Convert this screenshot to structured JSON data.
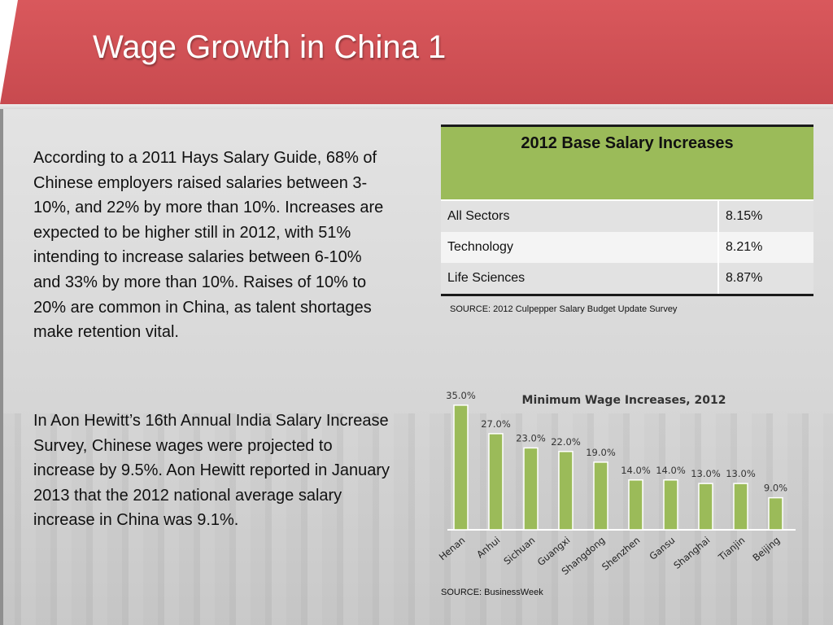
{
  "title": "Wage Growth in China 1",
  "paragraphs": [
    "According to a 2011 Hays Salary Guide, 68% of Chinese employers raised salaries between 3-10%, and 22% by more than 10%. Increases are expected to be higher still in 2012, with 51% intending to increase salaries between 6-10% and 33% by more than 10%. Raises of 10% to 20% are common in China, as talent shortages make retention vital.",
    "In Aon Hewitt’s 16th Annual India Salary Increase Survey, Chinese wages were projected to increase by 9.5%. Aon Hewitt reported in January 2013 that the 2012 national average salary increase in China was 9.1%."
  ],
  "salary_table": {
    "header": "2012 Base Salary Increases",
    "rows": [
      {
        "sector": "All Sectors",
        "value": "8.15%"
      },
      {
        "sector": "Technology",
        "value": "8.21%"
      },
      {
        "sector": "Life Sciences",
        "value": "8.87%"
      }
    ],
    "source": "SOURCE: 2012 Culpepper Salary Budget Update Survey"
  },
  "chart_source": "SOURCE: BusinessWeek",
  "colors": {
    "header_red": "#cd5155",
    "table_green": "#9bbb59",
    "bar_green": "#9bbb59",
    "bar_edge": "#ffffff"
  },
  "chart_data": {
    "type": "bar",
    "title": "Minimum Wage Increases, 2012",
    "categories": [
      "Henan",
      "Anhui",
      "Sichuan",
      "Guangxi",
      "Shangdong",
      "Shenzhen",
      "Gansu",
      "Shanghai",
      "Tianjin",
      "Beijing"
    ],
    "values": [
      35.0,
      27.0,
      23.0,
      22.0,
      19.0,
      14.0,
      14.0,
      13.0,
      13.0,
      9.0
    ],
    "value_labels": [
      "35.0%",
      "27.0%",
      "23.0%",
      "22.0%",
      "19.0%",
      "14.0%",
      "14.0%",
      "13.0%",
      "13.0%",
      "9.0%"
    ],
    "xlabel": "",
    "ylabel": "",
    "ylim": [
      0,
      40
    ],
    "grid": false,
    "legend": "none"
  }
}
